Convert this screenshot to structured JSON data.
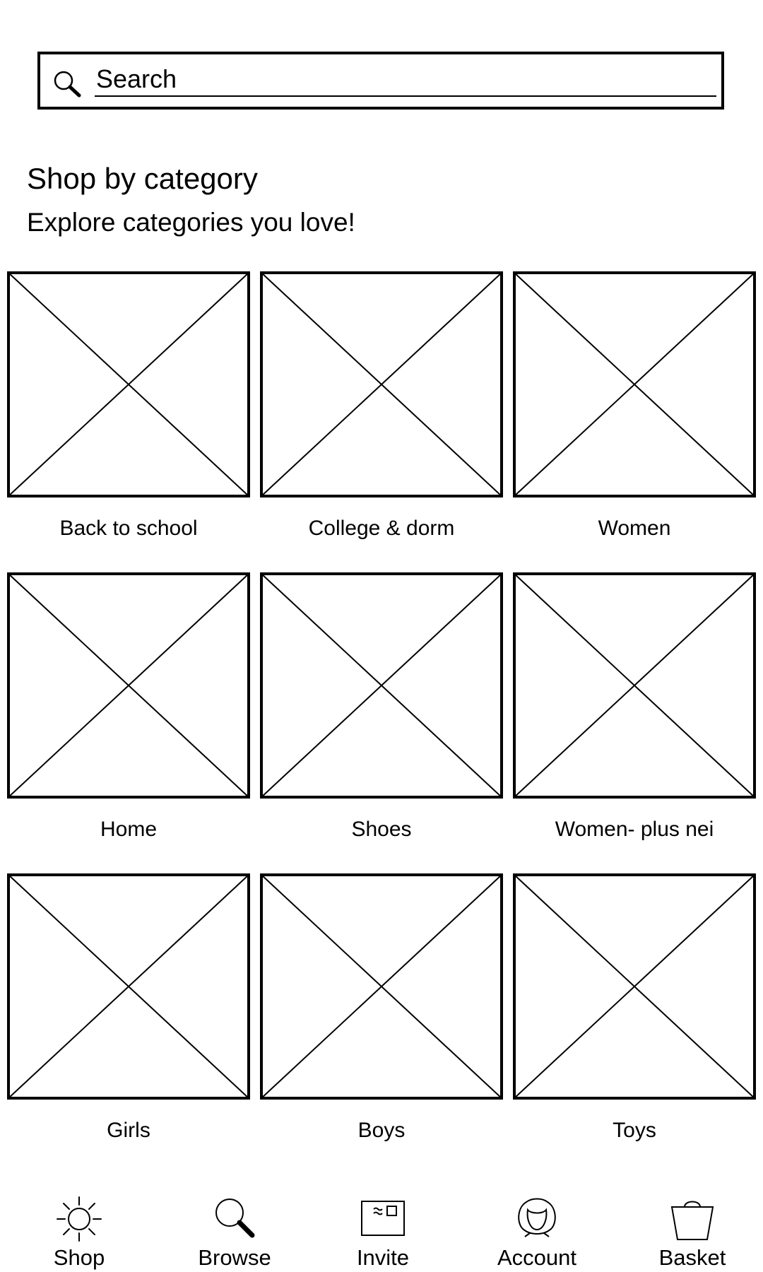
{
  "search": {
    "placeholder": "Search",
    "icon": "search-icon"
  },
  "header": {
    "title": "Shop by category",
    "subtitle": "Explore categories you love!"
  },
  "categories": [
    {
      "label": "Back to school"
    },
    {
      "label": "College & dorm"
    },
    {
      "label": "Women"
    },
    {
      "label": "Home"
    },
    {
      "label": "Shoes"
    },
    {
      "label": "Women- plus nei"
    },
    {
      "label": "Girls"
    },
    {
      "label": "Boys"
    },
    {
      "label": "Toys"
    }
  ],
  "bottom_nav": {
    "items": [
      {
        "label": "Shop",
        "icon": "sun-icon"
      },
      {
        "label": "Browse",
        "icon": "search-icon"
      },
      {
        "label": "Invite",
        "icon": "envelope-icon"
      },
      {
        "label": "Account",
        "icon": "person-icon"
      },
      {
        "label": "Basket",
        "icon": "basket-icon"
      }
    ]
  }
}
